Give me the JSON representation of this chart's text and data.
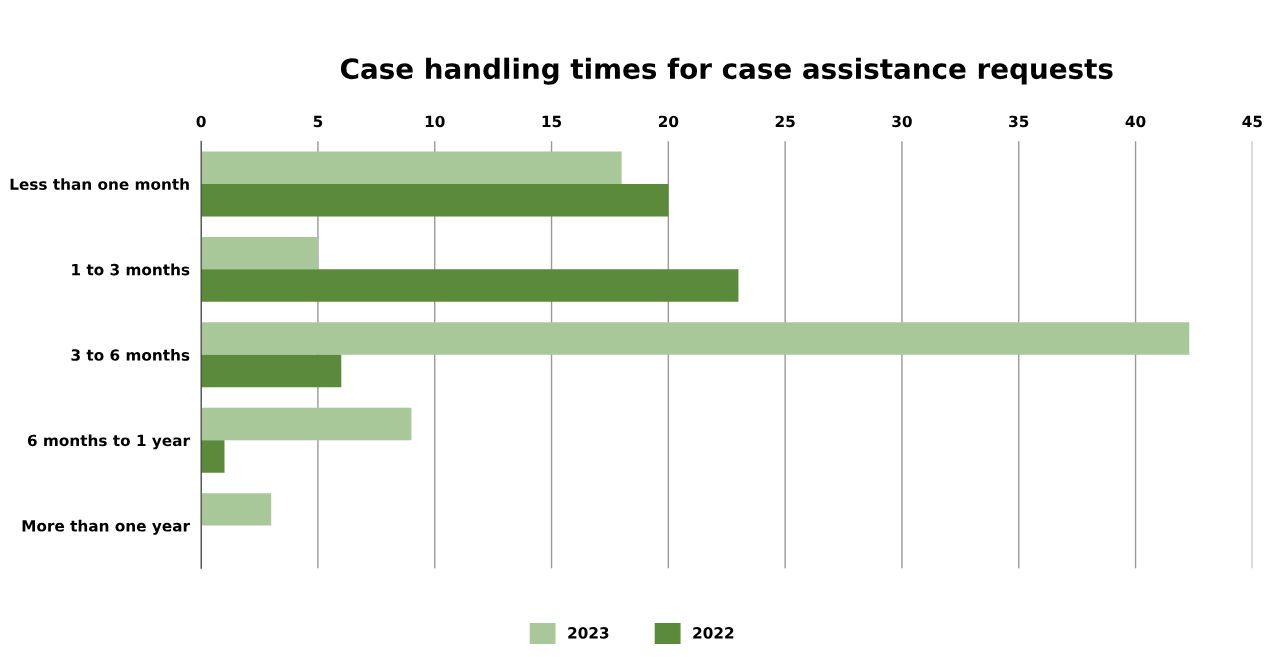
{
  "chart_data": {
    "type": "bar",
    "orientation": "horizontal",
    "title": "Case handling times for case assistance requests",
    "categories": [
      "Less than one month",
      "1 to 3 months",
      "3 to 6 months",
      "6 months to 1 year",
      "More than one year"
    ],
    "series": [
      {
        "name": "2023",
        "color": "#a9c89a",
        "values": [
          18,
          5,
          42.3,
          9,
          3
        ]
      },
      {
        "name": "2022",
        "color": "#5a8a3a",
        "values": [
          20,
          23,
          6,
          1,
          0
        ]
      }
    ],
    "xlim": [
      0,
      45
    ],
    "xticks": [
      0,
      5,
      10,
      15,
      20,
      25,
      30,
      35,
      40,
      45
    ],
    "grid": "x",
    "legend": "bottom"
  }
}
